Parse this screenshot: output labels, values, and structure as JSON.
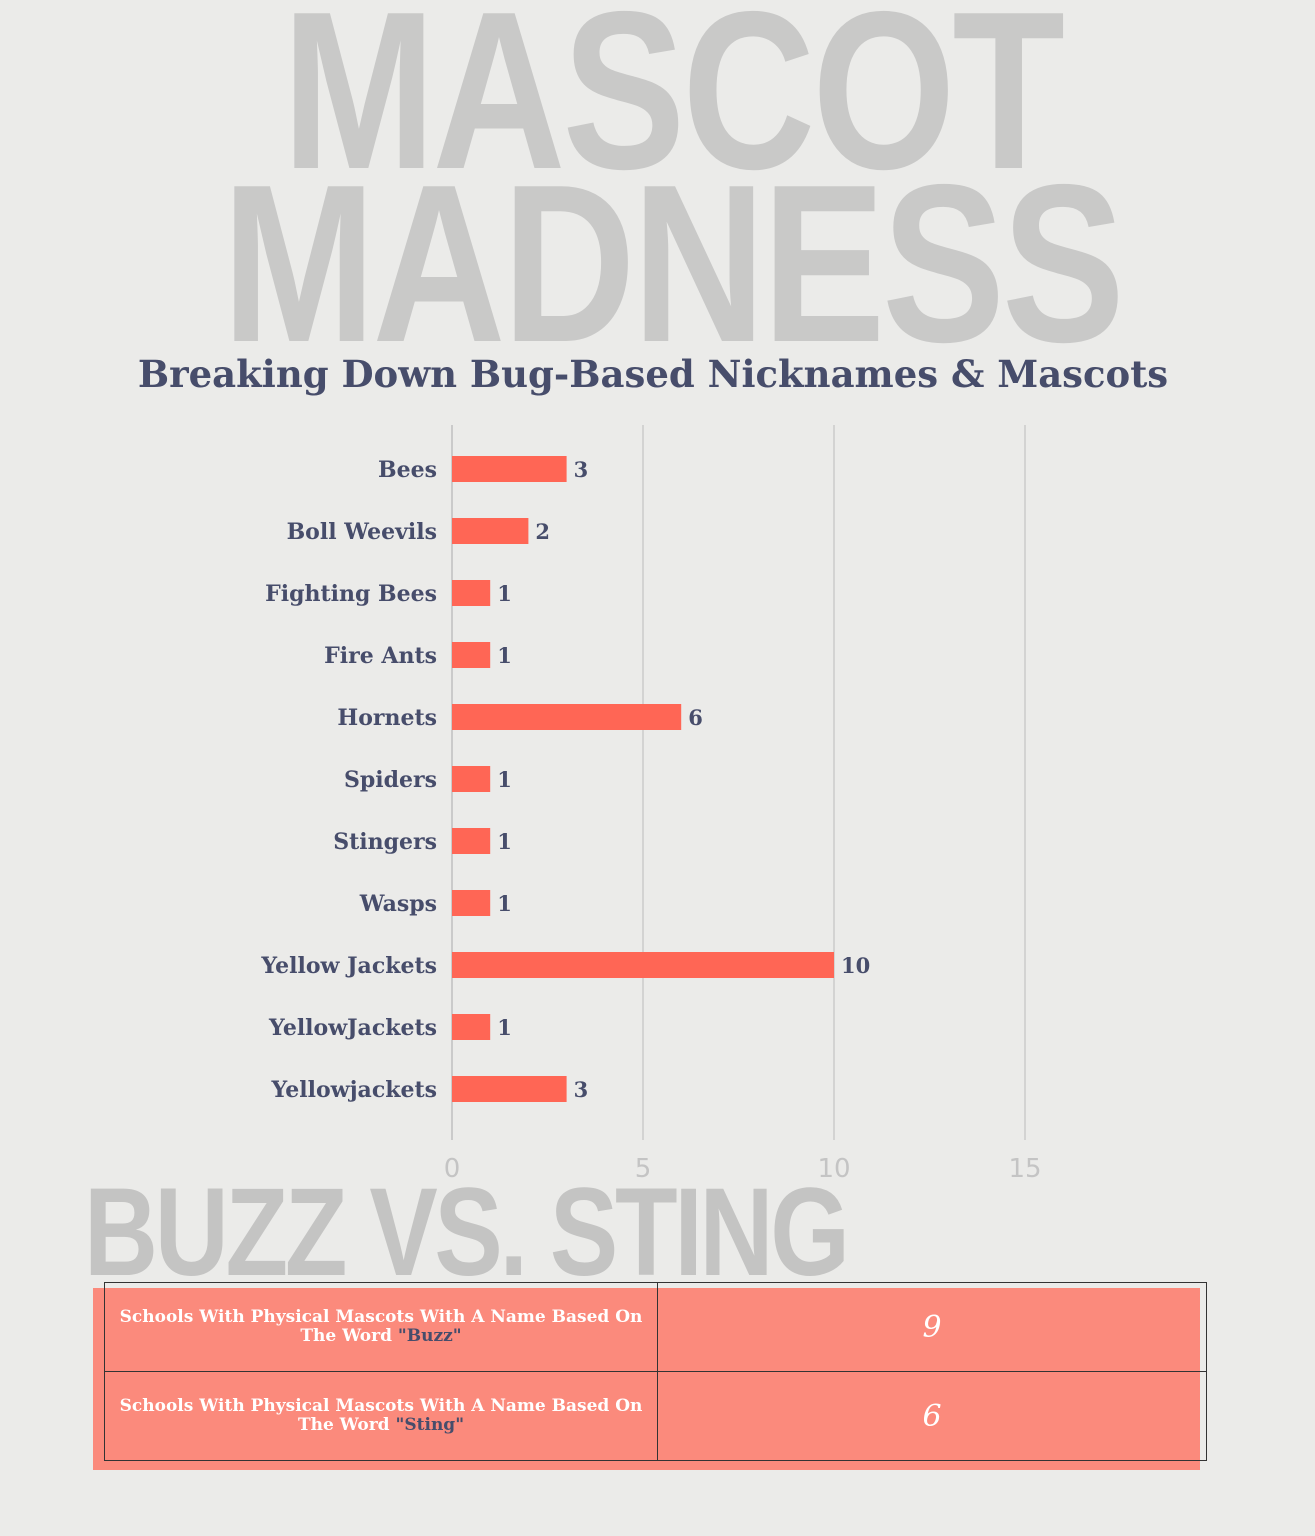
{
  "watermarks": {
    "line1": "MASCOT",
    "line2": "MADNESS",
    "line3": "BUZZ VS. STING"
  },
  "chart_data": {
    "type": "bar",
    "orientation": "horizontal",
    "title": "Breaking Down Bug-Based Nicknames & Mascots",
    "categories": [
      "Bees",
      "Boll Weevils",
      "Fighting Bees",
      "Fire Ants",
      "Hornets",
      "Spiders",
      "Stingers",
      "Wasps",
      "Yellow Jackets",
      "YellowJackets",
      "Yellowjackets"
    ],
    "values": [
      3,
      2,
      1,
      1,
      6,
      1,
      1,
      1,
      10,
      1,
      3
    ],
    "xlim": [
      0,
      15
    ],
    "xticks": [
      0,
      5,
      10,
      15
    ],
    "grid": true,
    "bar_color": "#ff6655",
    "text_color": "#474d6b"
  },
  "table": {
    "rows": [
      {
        "label_prefix": "Schools With Physical Mascots With A Name Based On The Word ",
        "keyword": "\"Buzz\"",
        "value": "9"
      },
      {
        "label_prefix": "Schools With Physical Mascots With A Name Based On The Word ",
        "keyword": "\"Sting\"",
        "value": "6"
      }
    ],
    "fill_color": "#fb8a7c"
  }
}
